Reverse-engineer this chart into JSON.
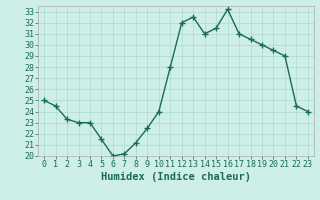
{
  "x": [
    0,
    1,
    2,
    3,
    4,
    5,
    6,
    7,
    8,
    9,
    10,
    11,
    12,
    13,
    14,
    15,
    16,
    17,
    18,
    19,
    20,
    21,
    22,
    23
  ],
  "y": [
    25.0,
    24.5,
    23.3,
    23.0,
    23.0,
    21.5,
    20.0,
    20.2,
    21.2,
    22.5,
    24.0,
    28.0,
    32.0,
    32.5,
    31.0,
    31.5,
    33.2,
    31.0,
    30.5,
    30.0,
    29.5,
    29.0,
    24.5,
    24.0
  ],
  "line_color": "#1a6b5a",
  "marker": "+",
  "marker_size": 4,
  "bg_color": "#ceeee8",
  "grid_color": "#aed8d0",
  "xlabel": "Humidex (Indice chaleur)",
  "ylim": [
    20,
    33.5
  ],
  "xlim": [
    -0.5,
    23.5
  ],
  "yticks": [
    20,
    21,
    22,
    23,
    24,
    25,
    26,
    27,
    28,
    29,
    30,
    31,
    32,
    33
  ],
  "xticks": [
    0,
    1,
    2,
    3,
    4,
    5,
    6,
    7,
    8,
    9,
    10,
    11,
    12,
    13,
    14,
    15,
    16,
    17,
    18,
    19,
    20,
    21,
    22,
    23
  ],
  "tick_label_fontsize": 6,
  "xlabel_fontsize": 7.5,
  "line_width": 1.0,
  "marker_edge_width": 1.0
}
